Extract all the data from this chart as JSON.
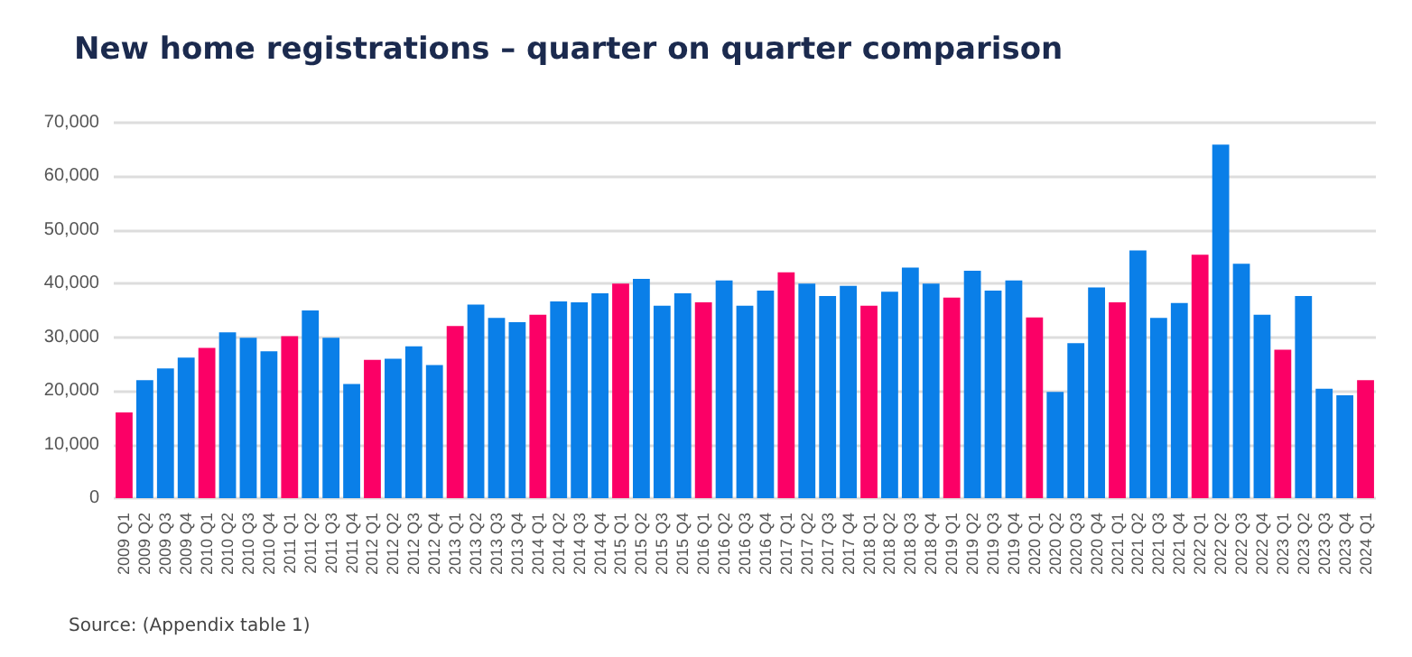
{
  "chart_data": {
    "type": "bar",
    "title": "New home registrations – quarter on quarter comparison",
    "categories": [
      "2009 Q1",
      "2009 Q2",
      "2009 Q3",
      "2009 Q4",
      "2010 Q1",
      "2010 Q2",
      "2010 Q3",
      "2010 Q4",
      "2011 Q1",
      "2011 Q2",
      "2011 Q3",
      "2011 Q4",
      "2012 Q1",
      "2012 Q2",
      "2012 Q3",
      "2012 Q4",
      "2013 Q1",
      "2013 Q2",
      "2013 Q3",
      "2013 Q4",
      "2014 Q1",
      "2014 Q2",
      "2014 Q3",
      "2014 Q4",
      "2015 Q1",
      "2015 Q2",
      "2015 Q3",
      "2015 Q4",
      "2016 Q1",
      "2016 Q2",
      "2016 Q3",
      "2016 Q4",
      "2017 Q1",
      "2017 Q2",
      "2017 Q3",
      "2017 Q4",
      "2018 Q1",
      "2018 Q2",
      "2018 Q3",
      "2018 Q4",
      "2019 Q1",
      "2019 Q2",
      "2019 Q3",
      "2019 Q4",
      "2020 Q1",
      "2020 Q2",
      "2020 Q3",
      "2020 Q4",
      "2021 Q1",
      "2021 Q2",
      "2021 Q3",
      "2021 Q4",
      "2022 Q1",
      "2022 Q2",
      "2022 Q3",
      "2022 Q4",
      "2023 Q1",
      "2023 Q2",
      "2023 Q3",
      "2023 Q4",
      "2024 Q1"
    ],
    "values": [
      16000,
      22000,
      24200,
      26200,
      28000,
      30900,
      29900,
      27400,
      30200,
      35000,
      29900,
      21300,
      25800,
      26000,
      28300,
      24800,
      32100,
      36100,
      33600,
      32800,
      34200,
      36700,
      36500,
      38200,
      40000,
      40900,
      35900,
      38200,
      36500,
      40600,
      35900,
      38700,
      42100,
      40000,
      37700,
      39600,
      35900,
      38500,
      43000,
      40000,
      37400,
      42400,
      38700,
      40600,
      33700,
      19800,
      28900,
      39300,
      36500,
      46200,
      33600,
      36400,
      45400,
      65900,
      43700,
      34200,
      27700,
      37700,
      20400,
      19200,
      22000
    ],
    "colors": [
      "#fb0066",
      "#0a7fe8",
      "#0a7fe8",
      "#0a7fe8",
      "#fb0066",
      "#0a7fe8",
      "#0a7fe8",
      "#0a7fe8",
      "#fb0066",
      "#0a7fe8",
      "#0a7fe8",
      "#0a7fe8",
      "#fb0066",
      "#0a7fe8",
      "#0a7fe8",
      "#0a7fe8",
      "#fb0066",
      "#0a7fe8",
      "#0a7fe8",
      "#0a7fe8",
      "#fb0066",
      "#0a7fe8",
      "#0a7fe8",
      "#0a7fe8",
      "#fb0066",
      "#0a7fe8",
      "#0a7fe8",
      "#0a7fe8",
      "#fb0066",
      "#0a7fe8",
      "#0a7fe8",
      "#0a7fe8",
      "#fb0066",
      "#0a7fe8",
      "#0a7fe8",
      "#0a7fe8",
      "#fb0066",
      "#0a7fe8",
      "#0a7fe8",
      "#0a7fe8",
      "#fb0066",
      "#0a7fe8",
      "#0a7fe8",
      "#0a7fe8",
      "#fb0066",
      "#0a7fe8",
      "#0a7fe8",
      "#0a7fe8",
      "#fb0066",
      "#0a7fe8",
      "#0a7fe8",
      "#0a7fe8",
      "#fb0066",
      "#0a7fe8",
      "#0a7fe8",
      "#0a7fe8",
      "#fb0066",
      "#0a7fe8",
      "#0a7fe8",
      "#0a7fe8",
      "#fb0066"
    ],
    "ylim": [
      0,
      70000
    ],
    "yticks": [
      0,
      {
        "value": 10000,
        "label": "10,000"
      },
      {
        "value": 20000,
        "label": "20,000"
      },
      {
        "value": 30000,
        "label": "30,000"
      },
      {
        "value": 40000,
        "label": "40,000"
      },
      {
        "value": 50000,
        "label": "50,000"
      },
      {
        "value": 60000,
        "label": "60,000"
      },
      {
        "value": 70000,
        "label": "70,000"
      }
    ],
    "grid": "y",
    "annotations": [
      "Source: (Appendix table 1)"
    ]
  }
}
